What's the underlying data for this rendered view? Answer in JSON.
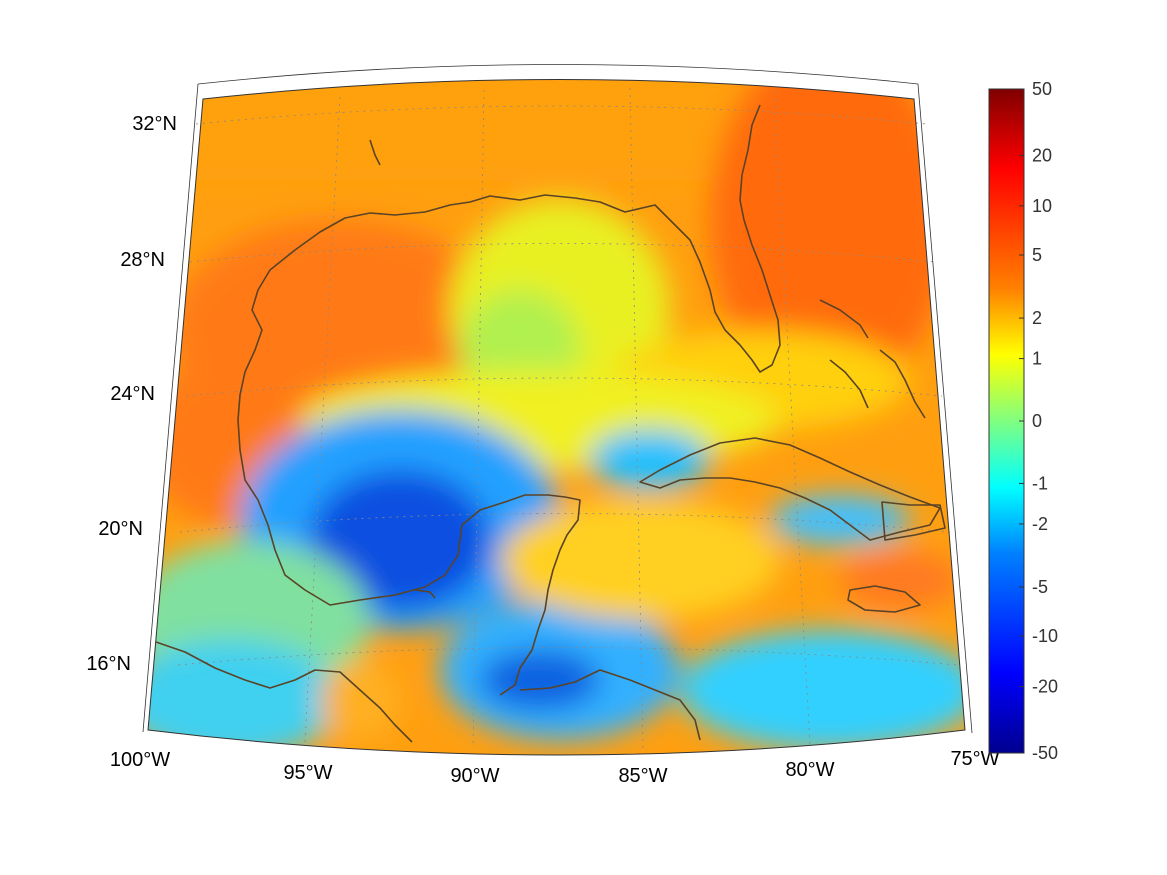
{
  "map": {
    "projection": "conic",
    "lon_range": [
      -100,
      -75
    ],
    "lat_range": [
      14,
      33
    ],
    "parallels_labels": [
      "16°N",
      "20°N",
      "24°N",
      "28°N",
      "32°N"
    ],
    "meridians_labels": [
      "100°W",
      "95°W",
      "90°W",
      "85°W",
      "80°W",
      "75°W"
    ],
    "grid": "dotted",
    "coastline_color": "#5a4326",
    "colormap": "jet"
  },
  "colorbar": {
    "ticks": [
      "50",
      "20",
      "10",
      "5",
      "2",
      "1",
      "0",
      "-1",
      "-2",
      "-5",
      "-10",
      "-20",
      "-50"
    ],
    "range": [
      -50,
      50
    ],
    "scale": "symmetric-log"
  },
  "field_description_regions": [
    {
      "region": "western Gulf",
      "level": "orange"
    },
    {
      "region": "Bay of Campeche",
      "level": "blue"
    },
    {
      "region": "Florida & Atlantic",
      "level": "red-orange"
    },
    {
      "region": "Caribbean south",
      "level": "cyan"
    }
  ]
}
